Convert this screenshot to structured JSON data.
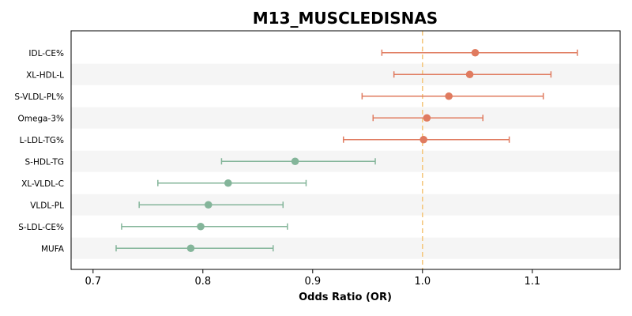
{
  "chart_data": {
    "type": "scatter",
    "subtype": "forest-plot",
    "title": "M13_MUSCLEDISNAS",
    "xlabel": "Odds Ratio (OR)",
    "ylabel": "",
    "xlim": [
      0.68,
      1.18
    ],
    "xticks": [
      0.7,
      0.8,
      0.9,
      1.0,
      1.1
    ],
    "xtick_labels": [
      "0.7",
      "0.8",
      "0.9",
      "1.0",
      "1.1"
    ],
    "reference_line": 1.0,
    "grid": false,
    "legend": "none",
    "colors": {
      "positive": "#E07B5F",
      "negative": "#84B59A",
      "reference": "#F5C77E",
      "band": "#F5F5F5"
    },
    "rows": [
      {
        "label": "IDL-CE%",
        "or": 1.048,
        "lo": 0.963,
        "hi": 1.141,
        "direction": "positive"
      },
      {
        "label": "XL-HDL-L",
        "or": 1.043,
        "lo": 0.974,
        "hi": 1.117,
        "direction": "positive"
      },
      {
        "label": "S-VLDL-PL%",
        "or": 1.024,
        "lo": 0.945,
        "hi": 1.11,
        "direction": "positive"
      },
      {
        "label": "Omega-3%",
        "or": 1.004,
        "lo": 0.955,
        "hi": 1.055,
        "direction": "positive"
      },
      {
        "label": "L-LDL-TG%",
        "or": 1.001,
        "lo": 0.928,
        "hi": 1.079,
        "direction": "positive"
      },
      {
        "label": "S-HDL-TG",
        "or": 0.884,
        "lo": 0.817,
        "hi": 0.957,
        "direction": "negative"
      },
      {
        "label": "XL-VLDL-C",
        "or": 0.823,
        "lo": 0.759,
        "hi": 0.894,
        "direction": "negative"
      },
      {
        "label": "VLDL-PL",
        "or": 0.805,
        "lo": 0.742,
        "hi": 0.873,
        "direction": "negative"
      },
      {
        "label": "S-LDL-CE%",
        "or": 0.798,
        "lo": 0.726,
        "hi": 0.877,
        "direction": "negative"
      },
      {
        "label": "MUFA",
        "or": 0.789,
        "lo": 0.721,
        "hi": 0.864,
        "direction": "negative"
      }
    ]
  }
}
